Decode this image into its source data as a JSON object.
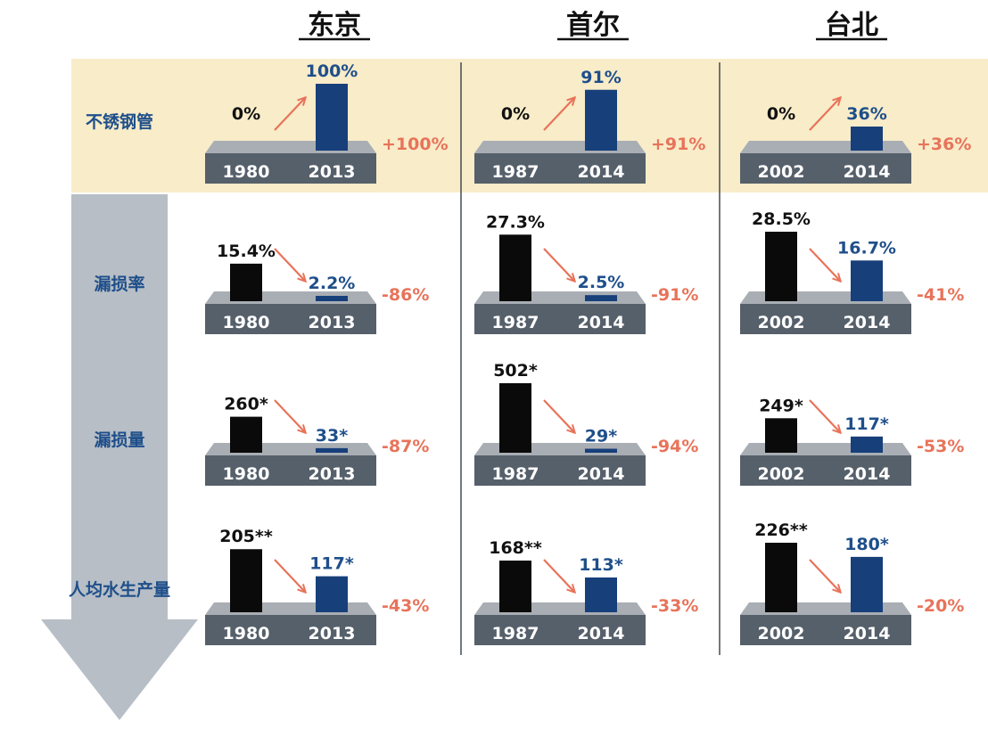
{
  "colors": {
    "highlight_bg": "#f8ecc9",
    "bar_old": "#0a0a0a",
    "bar_new": "#173f7a",
    "platform_top": "#a9aeb4",
    "platform_front": "#56606b",
    "change_text": "#e8735a",
    "arrow": "#e8735a",
    "side_arrow": "#b7bec6"
  },
  "chart_data": {
    "type": "bar",
    "cities": [
      {
        "name": "东京",
        "from_year": "1980",
        "to_year": "2013"
      },
      {
        "name": "首尔",
        "from_year": "1987",
        "to_year": "2014"
      },
      {
        "name": "台北",
        "from_year": "2002",
        "to_year": "2014"
      }
    ],
    "metrics": [
      {
        "label": "不锈钢管",
        "values": [
          {
            "from": 0,
            "to": 100,
            "from_label": "0%",
            "to_label": "100%",
            "change": "+100%"
          },
          {
            "from": 0,
            "to": 91,
            "from_label": "0%",
            "to_label": "91%",
            "change": "+91%"
          },
          {
            "from": 0,
            "to": 36,
            "from_label": "0%",
            "to_label": "36%",
            "change": "+36%"
          }
        ]
      },
      {
        "label": "漏损率",
        "values": [
          {
            "from": 15.4,
            "to": 2.2,
            "from_label": "15.4%",
            "to_label": "2.2%",
            "change": "-86%"
          },
          {
            "from": 27.3,
            "to": 2.5,
            "from_label": "27.3%",
            "to_label": "2.5%",
            "change": "-91%"
          },
          {
            "from": 28.5,
            "to": 16.7,
            "from_label": "28.5%",
            "to_label": "16.7%",
            "change": "-41%"
          }
        ]
      },
      {
        "label": "漏损量",
        "values": [
          {
            "from": 260,
            "to": 33,
            "from_label": "260*",
            "to_label": "33*",
            "change": "-87%"
          },
          {
            "from": 502,
            "to": 29,
            "from_label": "502*",
            "to_label": "29*",
            "change": "-94%"
          },
          {
            "from": 249,
            "to": 117,
            "from_label": "249*",
            "to_label": "117*",
            "change": "-53%"
          }
        ]
      },
      {
        "label": "人均水生产量",
        "values": [
          {
            "from": 205,
            "to": 117,
            "from_label": "205**",
            "to_label": "117*",
            "change": "-43%"
          },
          {
            "from": 168,
            "to": 113,
            "from_label": "168**",
            "to_label": "113*",
            "change": "-33%"
          },
          {
            "from": 226,
            "to": 180,
            "from_label": "226**",
            "to_label": "180*",
            "change": "-20%"
          }
        ]
      }
    ]
  }
}
